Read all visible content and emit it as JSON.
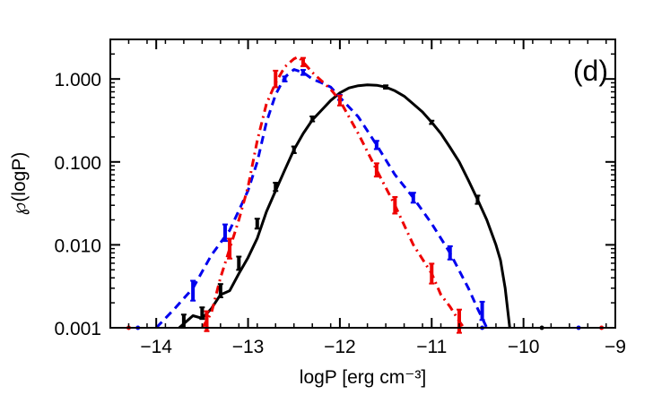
{
  "chart_data": {
    "type": "line",
    "panel_label": "(d)",
    "xlabel": "logP [erg cm⁻³]",
    "ylabel": "℘(logP)",
    "x_axis": {
      "range": [
        -14.5,
        -9
      ],
      "scale": "linear",
      "ticks": [
        -14,
        -13,
        -12,
        -11,
        -10,
        -9
      ],
      "tick_labels": [
        "−14",
        "−13",
        "−12",
        "−11",
        "−10",
        "−9"
      ]
    },
    "y_axis": {
      "range": [
        0.001,
        3
      ],
      "scale": "log",
      "ticks": [
        0.001,
        0.01,
        0.1,
        1
      ],
      "tick_labels": [
        "0.001",
        "0.010",
        "0.100",
        "1.000"
      ]
    },
    "series": [
      {
        "name": "black-solid",
        "color": "#000000",
        "dash": "solid",
        "x": [
          -13.75,
          -13.6,
          -13.5,
          -13.4,
          -13.3,
          -13.2,
          -13.1,
          -13.0,
          -12.9,
          -12.8,
          -12.7,
          -12.6,
          -12.5,
          -12.4,
          -12.3,
          -12.2,
          -12.1,
          -12.0,
          -11.9,
          -11.8,
          -11.7,
          -11.6,
          -11.5,
          -11.4,
          -11.3,
          -11.2,
          -11.1,
          -11.0,
          -10.9,
          -10.8,
          -10.7,
          -10.6,
          -10.5,
          -10.4,
          -10.3,
          -10.25,
          -10.2,
          -10.15
        ],
        "y": [
          0.001,
          0.0014,
          0.0013,
          0.0017,
          0.0025,
          0.0028,
          0.0045,
          0.007,
          0.012,
          0.025,
          0.045,
          0.08,
          0.14,
          0.22,
          0.32,
          0.42,
          0.55,
          0.68,
          0.78,
          0.83,
          0.85,
          0.84,
          0.8,
          0.72,
          0.62,
          0.5,
          0.4,
          0.3,
          0.22,
          0.15,
          0.1,
          0.06,
          0.035,
          0.02,
          0.01,
          0.0065,
          0.003,
          0.001
        ]
      },
      {
        "name": "blue-dashed",
        "color": "#0000ee",
        "dash": "dashed",
        "x": [
          -14.0,
          -13.8,
          -13.6,
          -13.4,
          -13.2,
          -13.0,
          -12.9,
          -12.8,
          -12.7,
          -12.6,
          -12.5,
          -12.4,
          -12.3,
          -12.2,
          -12.1,
          -12.0,
          -11.8,
          -11.6,
          -11.4,
          -11.2,
          -11.0,
          -10.8,
          -10.6,
          -10.5,
          -10.4
        ],
        "y": [
          0.001,
          0.0017,
          0.003,
          0.0075,
          0.015,
          0.045,
          0.1,
          0.3,
          0.65,
          1.05,
          1.3,
          1.2,
          1.0,
          0.9,
          0.8,
          0.6,
          0.35,
          0.16,
          0.07,
          0.037,
          0.018,
          0.008,
          0.003,
          0.0017,
          0.001
        ]
      },
      {
        "name": "red-dash-dot",
        "color": "#ee0000",
        "dash": "dashdot",
        "x": [
          -13.5,
          -13.4,
          -13.3,
          -13.2,
          -13.1,
          -13.0,
          -12.9,
          -12.8,
          -12.7,
          -12.6,
          -12.5,
          -12.45,
          -12.4,
          -12.3,
          -12.2,
          -12.1,
          -12.0,
          -11.8,
          -11.6,
          -11.4,
          -11.2,
          -11.0,
          -10.9,
          -10.8,
          -10.7,
          -10.65
        ],
        "y": [
          0.001,
          0.0015,
          0.004,
          0.009,
          0.02,
          0.05,
          0.18,
          0.5,
          0.9,
          1.4,
          1.75,
          1.85,
          1.6,
          1.2,
          0.95,
          0.75,
          0.55,
          0.22,
          0.08,
          0.03,
          0.01,
          0.0045,
          0.0025,
          0.0018,
          0.0012,
          0.001
        ]
      }
    ],
    "error_bars": [
      {
        "series": "black-solid",
        "color": "#000000",
        "x": [
          -13.7,
          -13.5,
          -13.3,
          -13.1,
          -12.9,
          -12.7,
          -12.5,
          -12.3,
          -11.5,
          -11.0,
          -10.5
        ],
        "y": [
          0.0012,
          0.0015,
          0.0028,
          0.006,
          0.018,
          0.05,
          0.14,
          0.33,
          0.8,
          0.3,
          0.035
        ],
        "half_width_dex": [
          0.08,
          0.07,
          0.08,
          0.08,
          0.06,
          0.05,
          0.04,
          0.03,
          0.02,
          0.02,
          0.05
        ]
      },
      {
        "series": "blue-dashed",
        "color": "#0000ee",
        "x": [
          -13.6,
          -13.25,
          -12.6,
          -12.4,
          -12.0,
          -11.6,
          -11.2,
          -10.8,
          -10.45
        ],
        "y": [
          0.0028,
          0.014,
          1.0,
          1.2,
          0.6,
          0.16,
          0.037,
          0.008,
          0.0016
        ],
        "half_width_dex": [
          0.12,
          0.1,
          0.03,
          0.03,
          0.03,
          0.05,
          0.06,
          0.08,
          0.11
        ]
      },
      {
        "series": "red-dash-dot",
        "color": "#ee0000",
        "x": [
          -13.45,
          -13.2,
          -12.7,
          -12.4,
          -12.0,
          -11.6,
          -11.4,
          -11.0,
          -10.7
        ],
        "y": [
          0.0012,
          0.009,
          1.0,
          1.6,
          0.55,
          0.08,
          0.03,
          0.0045,
          0.0012
        ],
        "half_width_dex": [
          0.12,
          0.12,
          0.1,
          0.05,
          0.06,
          0.08,
          0.1,
          0.12,
          0.14
        ]
      }
    ],
    "baseline_dots": [
      {
        "color": "#ee0000",
        "x": [
          -14.3,
          -13.45,
          -10.7,
          -9.15
        ]
      },
      {
        "color": "#0000ee",
        "x": [
          -14.2,
          -10.45,
          -9.4
        ]
      },
      {
        "color": "#000000",
        "x": [
          -9.8
        ]
      }
    ]
  }
}
